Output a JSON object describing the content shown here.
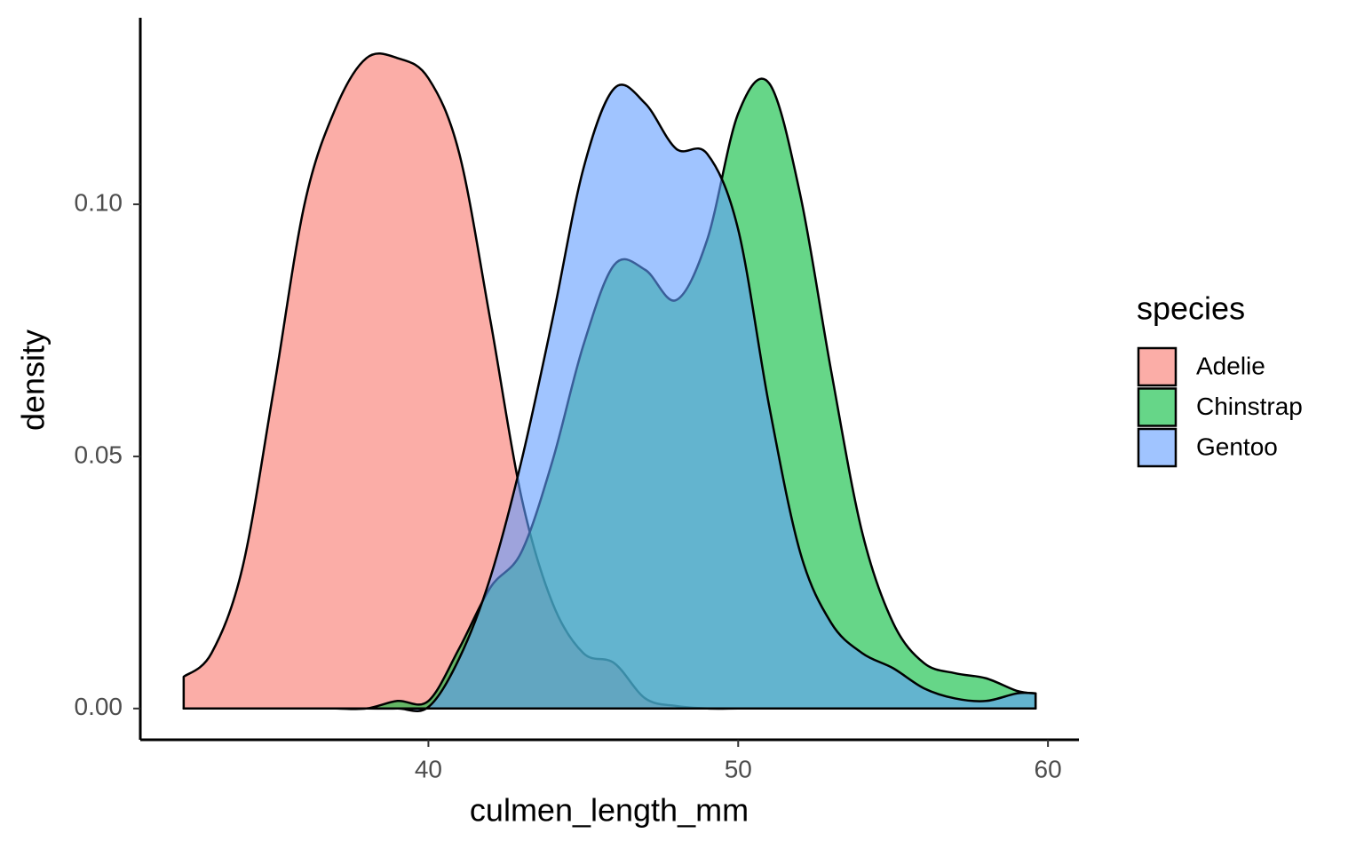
{
  "chart_data": {
    "type": "density",
    "x_label": "culmen_length_mm",
    "y_label": "density",
    "x": [
      32.1,
      33,
      34,
      35,
      36,
      37,
      38,
      39,
      40,
      41,
      42,
      43,
      44,
      45,
      46,
      47,
      48,
      49,
      50,
      51,
      52,
      53,
      54,
      55,
      56,
      57,
      58,
      59,
      59.6
    ],
    "series": [
      {
        "name": "Adelie",
        "color": "#F8766D",
        "values": [
          0.0063,
          0.011,
          0.028,
          0.063,
          0.1,
          0.119,
          0.129,
          0.129,
          0.125,
          0.11,
          0.077,
          0.042,
          0.021,
          0.011,
          0.009,
          0.002,
          0.0005,
          0,
          0,
          0,
          0,
          0,
          0,
          0,
          0,
          0,
          0,
          0,
          0
        ]
      },
      {
        "name": "Chinstrap",
        "color": "#00BA38",
        "values": [
          0,
          0,
          0,
          0,
          0,
          0,
          0,
          0.0015,
          0.0015,
          0.012,
          0.024,
          0.031,
          0.049,
          0.072,
          0.088,
          0.087,
          0.081,
          0.093,
          0.118,
          0.124,
          0.102,
          0.067,
          0.035,
          0.017,
          0.009,
          0.007,
          0.006,
          0.0035,
          0.003
        ]
      },
      {
        "name": "Gentoo",
        "color": "#619CFF",
        "values": [
          0,
          0,
          0,
          0,
          0,
          0,
          0,
          0,
          0.0003,
          0.01,
          0.026,
          0.049,
          0.077,
          0.107,
          0.123,
          0.12,
          0.111,
          0.11,
          0.095,
          0.06,
          0.031,
          0.017,
          0.011,
          0.008,
          0.004,
          0.002,
          0.0015,
          0.003,
          0.003
        ]
      }
    ],
    "fill_opacity": 0.6,
    "xlim": [
      30.7,
      61
    ],
    "ylim": [
      -0.0062,
      0.137
    ],
    "xticks": [
      40,
      50,
      60
    ],
    "yticks": [
      {
        "value": 0,
        "label": "0.00"
      },
      {
        "value": 0.05,
        "label": "0.05"
      },
      {
        "value": 0.1,
        "label": "0.10"
      }
    ],
    "legend": {
      "title": "species",
      "position": "right"
    }
  }
}
